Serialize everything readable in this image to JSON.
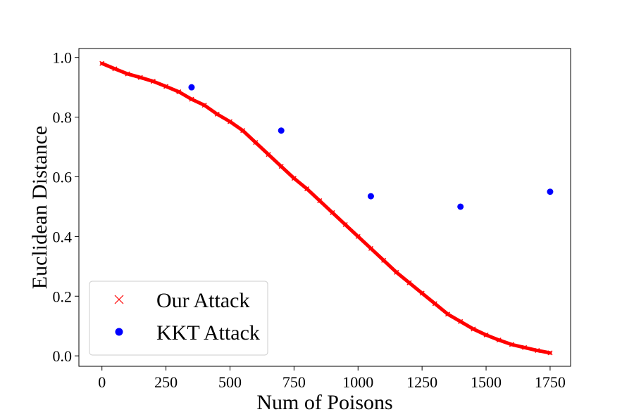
{
  "chart_data": {
    "type": "scatter",
    "title": "",
    "xlabel": "Num of Poisons",
    "ylabel": "Euclidean Distance",
    "xlim": [
      -90,
      1830
    ],
    "ylim": [
      -0.035,
      1.03
    ],
    "xticks": [
      0,
      250,
      500,
      750,
      1000,
      1250,
      1500,
      1750
    ],
    "yticks": [
      0.0,
      0.2,
      0.4,
      0.6,
      0.8,
      1.0
    ],
    "xtick_labels": [
      "0",
      "250",
      "500",
      "750",
      "1000",
      "1250",
      "1500",
      "1750"
    ],
    "ytick_labels": [
      "0.0",
      "0.2",
      "0.4",
      "0.6",
      "0.8",
      "1.0"
    ],
    "grid": false,
    "legend_position": "lower-left",
    "series": [
      {
        "name": "Our Attack",
        "marker": "x",
        "color": "#ff0000",
        "x": [
          0,
          50,
          100,
          150,
          200,
          250,
          300,
          350,
          400,
          450,
          500,
          550,
          600,
          650,
          700,
          750,
          800,
          850,
          900,
          950,
          1000,
          1050,
          1100,
          1150,
          1200,
          1250,
          1300,
          1350,
          1400,
          1450,
          1500,
          1550,
          1600,
          1650,
          1700,
          1750
        ],
        "y": [
          0.98,
          0.962,
          0.945,
          0.933,
          0.92,
          0.903,
          0.885,
          0.86,
          0.84,
          0.81,
          0.785,
          0.755,
          0.715,
          0.675,
          0.635,
          0.595,
          0.56,
          0.52,
          0.48,
          0.44,
          0.4,
          0.36,
          0.32,
          0.28,
          0.245,
          0.21,
          0.175,
          0.14,
          0.115,
          0.09,
          0.07,
          0.053,
          0.038,
          0.028,
          0.018,
          0.01
        ]
      },
      {
        "name": "KKT Attack",
        "marker": "o",
        "color": "#0000ff",
        "x": [
          350,
          700,
          1050,
          1400,
          1750
        ],
        "y": [
          0.9,
          0.755,
          0.535,
          0.5,
          0.55
        ]
      }
    ]
  }
}
